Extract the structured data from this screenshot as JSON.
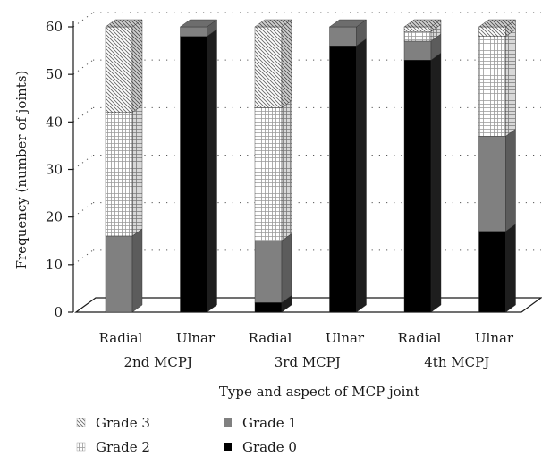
{
  "chart_data": {
    "type": "bar",
    "stacked": true,
    "three_d": true,
    "groups": [
      "2nd MCPJ",
      "3rd MCPJ",
      "4th MCPJ"
    ],
    "categories": [
      "Radial",
      "Ulnar",
      "Radial",
      "Ulnar",
      "Radial",
      "Ulnar"
    ],
    "series": [
      {
        "name": "Grade 0",
        "values": [
          0,
          58,
          2,
          56,
          53,
          17
        ],
        "color": "#000000",
        "pattern": "solid"
      },
      {
        "name": "Grade 1",
        "values": [
          16,
          2,
          13,
          4,
          4,
          20
        ],
        "color": "#808080",
        "pattern": "solid"
      },
      {
        "name": "Grade 2",
        "values": [
          26,
          0,
          28,
          0,
          2,
          21
        ],
        "color": "#ffffff",
        "pattern": "grid"
      },
      {
        "name": "Grade 3",
        "values": [
          18,
          0,
          17,
          0,
          1,
          2
        ],
        "color": "#ffffff",
        "pattern": "diagonal"
      }
    ],
    "xlabel": "Type and aspect of MCP joint",
    "ylabel": "Frequency (number of joints)",
    "ylim": [
      0,
      60
    ],
    "yticks": [
      0,
      10,
      20,
      30,
      40,
      50,
      60
    ],
    "grid": true,
    "legend_position": "bottom-left"
  }
}
